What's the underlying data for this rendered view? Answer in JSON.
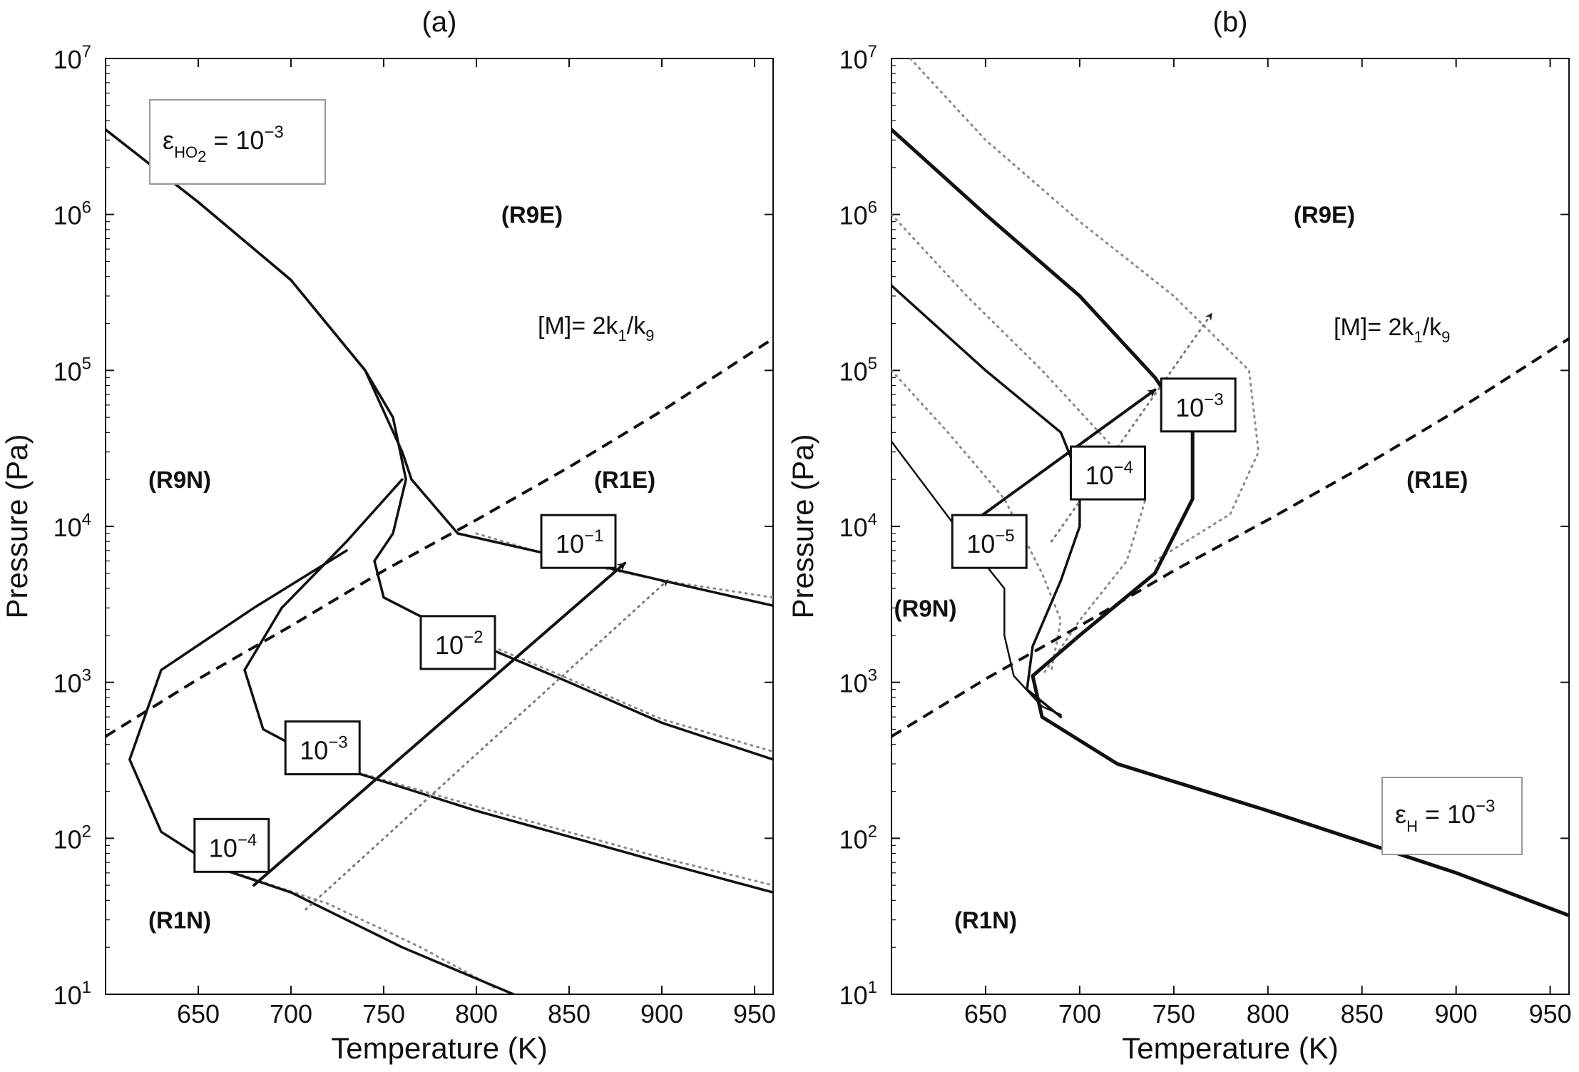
{
  "chart_data": [
    {
      "type": "line",
      "panel": "a",
      "title": "(a)",
      "xlabel": "Temperature (K)",
      "ylabel": "Pressure (Pa)",
      "xlim": [
        600,
        960
      ],
      "ylim": [
        10,
        10000000
      ],
      "yscale": "log",
      "xticks": [
        "650",
        "700",
        "750",
        "800",
        "850",
        "900",
        "950"
      ],
      "yticks": [
        {
          "base": "10",
          "exp": "1"
        },
        {
          "base": "10",
          "exp": "2"
        },
        {
          "base": "10",
          "exp": "3"
        },
        {
          "base": "10",
          "exp": "4"
        },
        {
          "base": "10",
          "exp": "5"
        },
        {
          "base": "10",
          "exp": "6"
        },
        {
          "base": "10",
          "exp": "7"
        }
      ],
      "legend": {
        "symbol": "ε",
        "subscript": "HO",
        "subscript2": "2",
        "equals": " = 10",
        "exponent": "−3",
        "position": "top-left"
      },
      "regions": [
        {
          "label": "(R9E)",
          "x": 830,
          "p": 1000000
        },
        {
          "label": "(R9N)",
          "x": 640,
          "p": 20000
        },
        {
          "label": "(R1E)",
          "x": 880,
          "p": 20000
        },
        {
          "label": "(R1N)",
          "x": 640,
          "p": 30
        }
      ],
      "boundary": {
        "label_prefix": "[M]= 2k",
        "label_sub1": "1",
        "label_mid": "/k",
        "label_sub2": "9",
        "points": [
          [
            600,
            450
          ],
          [
            650,
            1050
          ],
          [
            700,
            2300
          ],
          [
            750,
            5200
          ],
          [
            800,
            11000
          ],
          [
            850,
            24000
          ],
          [
            900,
            55000
          ],
          [
            960,
            160000
          ]
        ]
      },
      "series": [
        {
          "name": "10^-1",
          "label_base": "10",
          "label_exp": "−1",
          "label_at": [
            855,
            8000
          ],
          "points": [
            [
              600,
              3500000
            ],
            [
              650,
              1200000
            ],
            [
              700,
              380000
            ],
            [
              740,
              100000
            ],
            [
              760,
              30000
            ],
            [
              765,
              20000
            ],
            [
              790,
              9000
            ],
            [
              850,
              6200
            ],
            [
              900,
              4500
            ],
            [
              960,
              3100
            ]
          ]
        },
        {
          "name": "10^-2",
          "label_base": "10",
          "label_exp": "−2",
          "label_at": [
            790,
            1800
          ],
          "points": [
            [
              600,
              3500000
            ],
            [
              650,
              1200000
            ],
            [
              700,
              380000
            ],
            [
              740,
              100000
            ],
            [
              755,
              50000
            ],
            [
              762,
              20000
            ],
            [
              755,
              9000
            ],
            [
              745,
              6000
            ],
            [
              750,
              3500
            ],
            [
              790,
              2000
            ],
            [
              850,
              1000
            ],
            [
              900,
              550
            ],
            [
              960,
              320
            ]
          ]
        },
        {
          "name": "10^-3",
          "label_base": "10",
          "label_exp": "−3",
          "label_at": [
            717,
            380
          ],
          "points": [
            [
              760,
              20000
            ],
            [
              730,
              8000
            ],
            [
              695,
              3000
            ],
            [
              675,
              1200
            ],
            [
              685,
              500
            ],
            [
              720,
              300
            ],
            [
              800,
              150
            ],
            [
              900,
              70
            ],
            [
              960,
              45
            ]
          ]
        },
        {
          "name": "10^-4",
          "label_base": "10",
          "label_exp": "−4",
          "label_at": [
            668,
            90
          ],
          "points": [
            [
              730,
              7000
            ],
            [
              680,
              3000
            ],
            [
              630,
              1200
            ],
            [
              613,
              320
            ],
            [
              630,
              110
            ],
            [
              660,
              65
            ],
            [
              700,
              45
            ],
            [
              760,
              20
            ],
            [
              820,
              10
            ]
          ]
        }
      ],
      "dotted_series": [
        {
          "points": [
            [
              800,
              9000
            ],
            [
              850,
              6000
            ],
            [
              900,
              4500
            ],
            [
              960,
              3500
            ]
          ]
        },
        {
          "points": [
            [
              790,
              2100
            ],
            [
              850,
              1050
            ],
            [
              900,
              580
            ],
            [
              960,
              360
            ]
          ]
        },
        {
          "points": [
            [
              720,
              300
            ],
            [
              800,
              160
            ],
            [
              900,
              75
            ],
            [
              960,
              50
            ]
          ]
        },
        {
          "points": [
            [
              670,
              60
            ],
            [
              720,
              38
            ],
            [
              770,
              20
            ],
            [
              810,
              11
            ]
          ]
        }
      ],
      "arrows": [
        {
          "style": "solid",
          "from": [
            680,
            50
          ],
          "to": [
            880,
            5800
          ]
        },
        {
          "style": "dotted",
          "from": [
            708,
            35
          ],
          "to": [
            903,
            4500
          ]
        }
      ]
    },
    {
      "type": "line",
      "panel": "b",
      "title": "(b)",
      "xlabel": "Temperature (K)",
      "ylabel": "Pressure (Pa)",
      "xlim": [
        600,
        960
      ],
      "ylim": [
        10,
        10000000
      ],
      "yscale": "log",
      "xticks": [
        "650",
        "700",
        "750",
        "800",
        "850",
        "900",
        "950"
      ],
      "yticks": [
        {
          "base": "10",
          "exp": "1"
        },
        {
          "base": "10",
          "exp": "2"
        },
        {
          "base": "10",
          "exp": "3"
        },
        {
          "base": "10",
          "exp": "4"
        },
        {
          "base": "10",
          "exp": "5"
        },
        {
          "base": "10",
          "exp": "6"
        },
        {
          "base": "10",
          "exp": "7"
        }
      ],
      "legend": {
        "symbol": "ε",
        "subscript": "H",
        "equals": " = 10",
        "exponent": "−3",
        "position": "bottom-right"
      },
      "regions": [
        {
          "label": "(R9E)",
          "x": 830,
          "p": 1000000
        },
        {
          "label": "(R1E)",
          "x": 890,
          "p": 20000
        },
        {
          "label": "(R9N)",
          "x": 618,
          "p": 3000
        },
        {
          "label": "(R1N)",
          "x": 650,
          "p": 30
        }
      ],
      "boundary": {
        "label_prefix": "[M]= 2k",
        "label_sub1": "1",
        "label_mid": "/k",
        "label_sub2": "9",
        "points": [
          [
            600,
            450
          ],
          [
            650,
            1050
          ],
          [
            700,
            2300
          ],
          [
            750,
            5200
          ],
          [
            800,
            11000
          ],
          [
            850,
            24000
          ],
          [
            900,
            55000
          ],
          [
            960,
            160000
          ]
        ]
      },
      "series": [
        {
          "name": "10^-3",
          "label_base": "10",
          "label_exp": "−3",
          "label_at": [
            763,
            60000
          ],
          "points": [
            [
              600,
              3500000
            ],
            [
              650,
              1000000
            ],
            [
              700,
              300000
            ],
            [
              740,
              90000
            ],
            [
              760,
              40000
            ],
            [
              760,
              15000
            ],
            [
              740,
              5000
            ],
            [
              700,
              2000
            ],
            [
              675,
              1100
            ],
            [
              680,
              600
            ],
            [
              720,
              300
            ],
            [
              800,
              150
            ],
            [
              900,
              60
            ],
            [
              960,
              32
            ]
          ]
        },
        {
          "name": "10^-4",
          "label_base": "10",
          "label_exp": "−4",
          "label_at": [
            715,
            22000
          ],
          "points": [
            [
              600,
              350000
            ],
            [
              650,
              100000
            ],
            [
              690,
              40000
            ],
            [
              700,
              20000
            ],
            [
              700,
              10000
            ],
            [
              690,
              4500
            ],
            [
              675,
              1700
            ],
            [
              672,
              900
            ],
            [
              690,
              600
            ]
          ]
        },
        {
          "name": "10^-5",
          "label_base": "10",
          "label_exp": "−5",
          "label_at": [
            652,
            8000
          ],
          "points": [
            [
              600,
              35000
            ],
            [
              640,
              8000
            ],
            [
              660,
              4000
            ],
            [
              660,
              2000
            ],
            [
              665,
              1100
            ],
            [
              680,
              700
            ],
            [
              690,
              620
            ]
          ]
        }
      ],
      "dotted_series": [
        {
          "points": [
            [
              610,
              10000000
            ],
            [
              650,
              3000000
            ],
            [
              700,
              900000
            ],
            [
              750,
              300000
            ],
            [
              790,
              100000
            ],
            [
              795,
              30000
            ],
            [
              780,
              12000
            ],
            [
              740,
              6000
            ]
          ]
        },
        {
          "points": [
            [
              600,
              1000000
            ],
            [
              640,
              300000
            ],
            [
              680,
              100000
            ],
            [
              720,
              30000
            ],
            [
              735,
              15000
            ],
            [
              725,
              6000
            ],
            [
              700,
              2500
            ],
            [
              680,
              1100
            ]
          ]
        },
        {
          "points": [
            [
              600,
              100000
            ],
            [
              630,
              40000
            ],
            [
              660,
              15000
            ],
            [
              680,
              5000
            ],
            [
              690,
              2500
            ],
            [
              685,
              1200
            ]
          ]
        }
      ],
      "arrows": [
        {
          "style": "solid",
          "from": [
            640,
            10000
          ],
          "to": [
            740,
            75000
          ]
        },
        {
          "style": "dotted",
          "from": [
            685,
            8000
          ],
          "to": [
            770,
            230000
          ]
        }
      ]
    }
  ]
}
